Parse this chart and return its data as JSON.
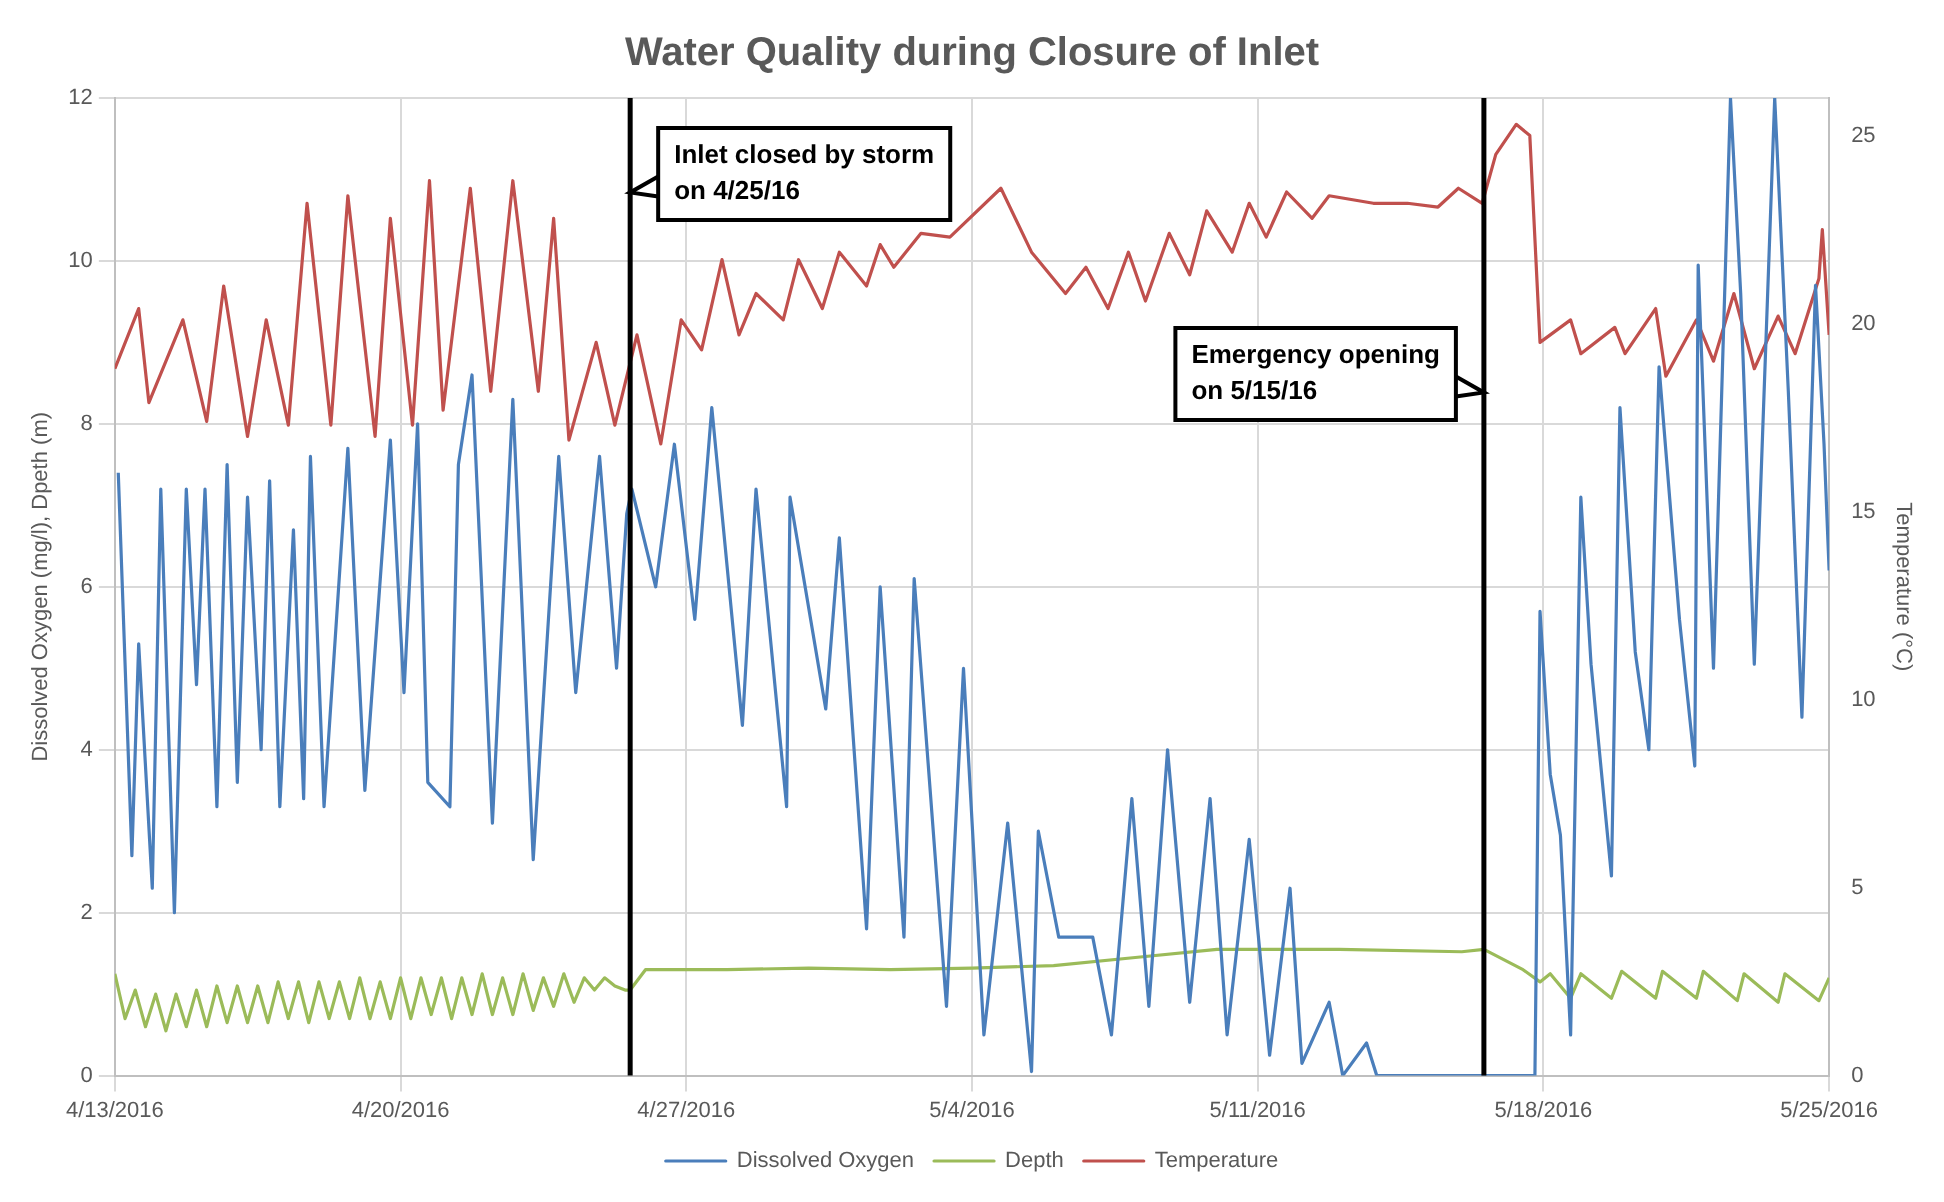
{
  "chart_data": {
    "type": "line",
    "title": "Water Quality during Closure of Inlet",
    "ylabel": "Dissolved Oxygen (mg/l), Dpeth (m)",
    "y2label": "Temperature (°C)",
    "xlim": [
      "2016-04-13",
      "2016-05-25"
    ],
    "xticks": [
      {
        "value": "2016-04-13",
        "label": "4/13/2016"
      },
      {
        "value": "2016-04-20",
        "label": "4/20/2016"
      },
      {
        "value": "2016-04-27",
        "label": "4/27/2016"
      },
      {
        "value": "2016-05-04",
        "label": "5/4/2016"
      },
      {
        "value": "2016-05-11",
        "label": "5/11/2016"
      },
      {
        "value": "2016-05-18",
        "label": "5/18/2016"
      },
      {
        "value": "2016-05-25",
        "label": "5/25/2016"
      }
    ],
    "ylim": [
      0,
      12
    ],
    "yticks": [
      0,
      2,
      4,
      6,
      8,
      10,
      12
    ],
    "y2lim": [
      0,
      26
    ],
    "y2ticks": [
      0,
      5,
      10,
      15,
      20,
      25
    ],
    "grid": true,
    "legend": "bottom",
    "marker": "none",
    "line_style": "solid",
    "ref_lines": [
      {
        "axis": "x",
        "value": "2016-04-25T15:00",
        "label": "Inlet closed by storm on 4/25/16",
        "color": "#000000"
      },
      {
        "axis": "x",
        "value": "2016-05-16T13:00",
        "label": "Emergency opening on 5/15/16",
        "color": "#000000"
      }
    ],
    "series": [
      {
        "name": "Dissolved Oxygen",
        "color": "#4a7ebb",
        "x": [
          "2016-04-13T02:00",
          "2016-04-13T10:00",
          "2016-04-13T14:00",
          "2016-04-13T22:00",
          "2016-04-14T03:00",
          "2016-04-14T11:00",
          "2016-04-14T18:00",
          "2016-04-15T00:00",
          "2016-04-15T05:00",
          "2016-04-15T12:00",
          "2016-04-15T18:00",
          "2016-04-16T00:00",
          "2016-04-16T06:00",
          "2016-04-16T14:00",
          "2016-04-16T19:00",
          "2016-04-17T01:00",
          "2016-04-17T09:00",
          "2016-04-17T15:00",
          "2016-04-17T19:00",
          "2016-04-18T03:00",
          "2016-04-18T17:00",
          "2016-04-19T03:00",
          "2016-04-19T18:00",
          "2016-04-20T02:00",
          "2016-04-20T10:00",
          "2016-04-20T16:00",
          "2016-04-21T05:00",
          "2016-04-21T10:00",
          "2016-04-21T18:00",
          "2016-04-22T06:00",
          "2016-04-22T18:00",
          "2016-04-23T06:00",
          "2016-04-23T21:00",
          "2016-04-24T07:00",
          "2016-04-24T21:00",
          "2016-04-25T07:00",
          "2016-04-25T13:00",
          "2016-04-25T16:00",
          "2016-04-26T06:00",
          "2016-04-26T17:00",
          "2016-04-27T05:00",
          "2016-04-27T15:00",
          "2016-04-28T09:00",
          "2016-04-28T17:00",
          "2016-04-29T11:00",
          "2016-04-29T13:00",
          "2016-04-30T10:00",
          "2016-04-30T18:00",
          "2016-05-01T10:00",
          "2016-05-01T18:00",
          "2016-05-02T08:00",
          "2016-05-02T14:00",
          "2016-05-03T09:00",
          "2016-05-03T19:00",
          "2016-05-04T07:00",
          "2016-05-04T21:00",
          "2016-05-05T11:00",
          "2016-05-05T15:00",
          "2016-05-06T03:00",
          "2016-05-06T23:00",
          "2016-05-07T10:00",
          "2016-05-07T22:00",
          "2016-05-08T08:00",
          "2016-05-08T19:00",
          "2016-05-09T08:00",
          "2016-05-09T20:00",
          "2016-05-10T06:00",
          "2016-05-10T19:00",
          "2016-05-11T07:00",
          "2016-05-11T19:00",
          "2016-05-12T02:00",
          "2016-05-12T18:00",
          "2016-05-13T02:00",
          "2016-05-13T16:00",
          "2016-05-13T22:00",
          "2016-05-17T19:00",
          "2016-05-17T22:00",
          "2016-05-18T04:00",
          "2016-05-18T10:00",
          "2016-05-18T16:00",
          "2016-05-18T22:00",
          "2016-05-19T04:00",
          "2016-05-19T16:00",
          "2016-05-19T21:00",
          "2016-05-20T06:00",
          "2016-05-20T14:00",
          "2016-05-20T20:00",
          "2016-05-21T08:00",
          "2016-05-21T17:00",
          "2016-05-21T19:00",
          "2016-05-22T04:00",
          "2016-05-22T14:00",
          "2016-05-22T20:00",
          "2016-05-23T04:00",
          "2016-05-23T16:00",
          "2016-05-24T00:00",
          "2016-05-24T08:00",
          "2016-05-24T16:00",
          "2016-05-24T21:00",
          "2016-05-25T00:00"
        ],
        "values": [
          7.4,
          2.7,
          5.3,
          2.3,
          7.2,
          2.0,
          7.2,
          4.8,
          7.2,
          3.3,
          7.5,
          3.6,
          7.1,
          4.0,
          7.3,
          3.3,
          6.7,
          3.4,
          7.6,
          3.3,
          7.7,
          3.5,
          7.8,
          4.7,
          8.0,
          3.6,
          3.3,
          7.5,
          8.6,
          3.1,
          8.3,
          2.65,
          7.6,
          4.7,
          7.6,
          5.0,
          6.9,
          7.2,
          6.0,
          7.75,
          5.6,
          8.2,
          4.3,
          7.2,
          3.3,
          7.1,
          4.5,
          6.6,
          1.8,
          6.0,
          1.7,
          6.1,
          0.85,
          5.0,
          0.5,
          3.1,
          0.05,
          3.0,
          1.7,
          1.7,
          0.5,
          3.4,
          0.85,
          4.0,
          0.9,
          3.4,
          0.5,
          2.9,
          0.25,
          2.3,
          0.15,
          0.9,
          0,
          0.4,
          0,
          0,
          5.7,
          3.7,
          2.95,
          0.5,
          7.1,
          5.05,
          2.45,
          8.2,
          5.2,
          4.0,
          8.7,
          5.6,
          3.8,
          9.95,
          5.0,
          12.0,
          9.6,
          5.05,
          12.0,
          8.4,
          4.4,
          9.7,
          7.75,
          6.2
        ]
      },
      {
        "name": "Depth",
        "color": "#9bbb59",
        "x": [
          "2016-04-13T00:00",
          "2016-04-13T06:00",
          "2016-04-13T12:00",
          "2016-04-13T18:00",
          "2016-04-14T00:00",
          "2016-04-14T06:00",
          "2016-04-14T12:00",
          "2016-04-14T18:00",
          "2016-04-15T00:00",
          "2016-04-15T06:00",
          "2016-04-15T12:00",
          "2016-04-15T18:00",
          "2016-04-16T00:00",
          "2016-04-16T06:00",
          "2016-04-16T12:00",
          "2016-04-16T18:00",
          "2016-04-17T00:00",
          "2016-04-17T06:00",
          "2016-04-17T12:00",
          "2016-04-17T18:00",
          "2016-04-18T00:00",
          "2016-04-18T06:00",
          "2016-04-18T12:00",
          "2016-04-18T18:00",
          "2016-04-19T00:00",
          "2016-04-19T06:00",
          "2016-04-19T12:00",
          "2016-04-19T18:00",
          "2016-04-20T00:00",
          "2016-04-20T06:00",
          "2016-04-20T12:00",
          "2016-04-20T18:00",
          "2016-04-21T00:00",
          "2016-04-21T06:00",
          "2016-04-21T12:00",
          "2016-04-21T18:00",
          "2016-04-22T00:00",
          "2016-04-22T06:00",
          "2016-04-22T12:00",
          "2016-04-22T18:00",
          "2016-04-23T00:00",
          "2016-04-23T06:00",
          "2016-04-23T12:00",
          "2016-04-23T18:00",
          "2016-04-24T00:00",
          "2016-04-24T06:00",
          "2016-04-24T12:00",
          "2016-04-24T18:00",
          "2016-04-25T00:00",
          "2016-04-25T06:00",
          "2016-04-25T12:00",
          "2016-04-25T15:00",
          "2016-04-26T00:00",
          "2016-04-28T00:00",
          "2016-04-30T00:00",
          "2016-05-02T00:00",
          "2016-05-04T00:00",
          "2016-05-06T00:00",
          "2016-05-08T00:00",
          "2016-05-10T00:00",
          "2016-05-13T00:00",
          "2016-05-16T00:00",
          "2016-05-16T13:00",
          "2016-05-17T12:00",
          "2016-05-17T22:00",
          "2016-05-18T04:00",
          "2016-05-18T16:00",
          "2016-05-18T22:00",
          "2016-05-19T16:00",
          "2016-05-19T22:00",
          "2016-05-20T18:00",
          "2016-05-20T22:00",
          "2016-05-21T18:00",
          "2016-05-21T22:00",
          "2016-05-22T18:00",
          "2016-05-22T22:00",
          "2016-05-23T18:00",
          "2016-05-23T22:00",
          "2016-05-24T18:00",
          "2016-05-25T00:00"
        ],
        "values": [
          1.25,
          0.7,
          1.05,
          0.6,
          1.0,
          0.55,
          1.0,
          0.6,
          1.05,
          0.6,
          1.1,
          0.65,
          1.1,
          0.65,
          1.1,
          0.65,
          1.15,
          0.7,
          1.15,
          0.65,
          1.15,
          0.7,
          1.15,
          0.7,
          1.2,
          0.7,
          1.15,
          0.7,
          1.2,
          0.7,
          1.2,
          0.75,
          1.2,
          0.7,
          1.2,
          0.75,
          1.25,
          0.75,
          1.2,
          0.75,
          1.25,
          0.8,
          1.2,
          0.85,
          1.25,
          0.9,
          1.2,
          1.05,
          1.2,
          1.1,
          1.05,
          1.05,
          1.3,
          1.3,
          1.32,
          1.3,
          1.32,
          1.35,
          1.45,
          1.55,
          1.55,
          1.52,
          1.55,
          1.3,
          1.15,
          1.25,
          0.95,
          1.25,
          0.95,
          1.28,
          0.95,
          1.28,
          0.95,
          1.28,
          0.92,
          1.25,
          0.9,
          1.25,
          0.92,
          1.2
        ]
      },
      {
        "name": "Temperature",
        "color": "#c0504d",
        "axis": "y2",
        "x": [
          "2016-04-13T00:00",
          "2016-04-13T14:00",
          "2016-04-13T20:00",
          "2016-04-14T16:00",
          "2016-04-15T06:00",
          "2016-04-15T16:00",
          "2016-04-16T06:00",
          "2016-04-16T17:00",
          "2016-04-17T06:00",
          "2016-04-17T17:00",
          "2016-04-18T07:00",
          "2016-04-18T17:00",
          "2016-04-19T09:00",
          "2016-04-19T18:00",
          "2016-04-20T07:00",
          "2016-04-20T17:00",
          "2016-04-21T01:00",
          "2016-04-21T17:00",
          "2016-04-22T05:00",
          "2016-04-22T18:00",
          "2016-04-23T09:00",
          "2016-04-23T18:00",
          "2016-04-24T03:00",
          "2016-04-24T19:00",
          "2016-04-25T06:00",
          "2016-04-25T19:00",
          "2016-04-26T09:00",
          "2016-04-26T21:00",
          "2016-04-27T09:00",
          "2016-04-27T21:00",
          "2016-04-28T07:00",
          "2016-04-28T17:00",
          "2016-04-29T09:00",
          "2016-04-29T18:00",
          "2016-04-30T08:00",
          "2016-04-30T18:00",
          "2016-05-01T10:00",
          "2016-05-01T18:00",
          "2016-05-02T02:00",
          "2016-05-02T18:00",
          "2016-05-03T11:00",
          "2016-05-04T17:00",
          "2016-05-05T11:00",
          "2016-05-06T07:00",
          "2016-05-06T19:00",
          "2016-05-07T08:00",
          "2016-05-07T20:00",
          "2016-05-08T06:00",
          "2016-05-08T20:00",
          "2016-05-09T08:00",
          "2016-05-09T18:00",
          "2016-05-10T09:00",
          "2016-05-10T19:00",
          "2016-05-11T05:00",
          "2016-05-11T17:00",
          "2016-05-12T08:00",
          "2016-05-12T18:00",
          "2016-05-13T20:00",
          "2016-05-14T16:00",
          "2016-05-15T10:00",
          "2016-05-15T22:00",
          "2016-05-16T12:00",
          "2016-05-16T20:00",
          "2016-05-17T08:00",
          "2016-05-17T16:00",
          "2016-05-17T22:00",
          "2016-05-18T16:00",
          "2016-05-18T22:00",
          "2016-05-19T18:00",
          "2016-05-20T00:00",
          "2016-05-20T18:00",
          "2016-05-21T00:00",
          "2016-05-21T18:00",
          "2016-05-22T04:00",
          "2016-05-22T16:00",
          "2016-05-23T04:00",
          "2016-05-23T18:00",
          "2016-05-24T04:00",
          "2016-05-24T18:00",
          "2016-05-24T20:00",
          "2016-05-25T00:00"
        ],
        "values": [
          18.8,
          20.4,
          17.9,
          20.1,
          17.4,
          21.0,
          17.0,
          20.1,
          17.3,
          23.2,
          17.3,
          23.4,
          17.0,
          22.8,
          17.3,
          23.8,
          17.7,
          23.6,
          18.2,
          23.8,
          18.2,
          22.8,
          16.9,
          19.5,
          17.3,
          19.7,
          16.8,
          20.1,
          19.3,
          21.7,
          19.7,
          20.8,
          20.1,
          21.7,
          20.4,
          21.9,
          21.0,
          22.1,
          21.5,
          22.4,
          22.3,
          23.6,
          21.9,
          20.8,
          21.5,
          20.4,
          21.9,
          20.6,
          22.4,
          21.3,
          23.0,
          21.9,
          23.2,
          22.3,
          23.5,
          22.8,
          23.4,
          23.2,
          23.2,
          23.1,
          23.6,
          23.2,
          24.5,
          25.3,
          25.0,
          19.5,
          20.1,
          19.2,
          19.9,
          19.2,
          20.4,
          18.6,
          20.1,
          19.0,
          20.8,
          18.8,
          20.2,
          19.2,
          21.2,
          22.5,
          19.7
        ]
      }
    ]
  }
}
